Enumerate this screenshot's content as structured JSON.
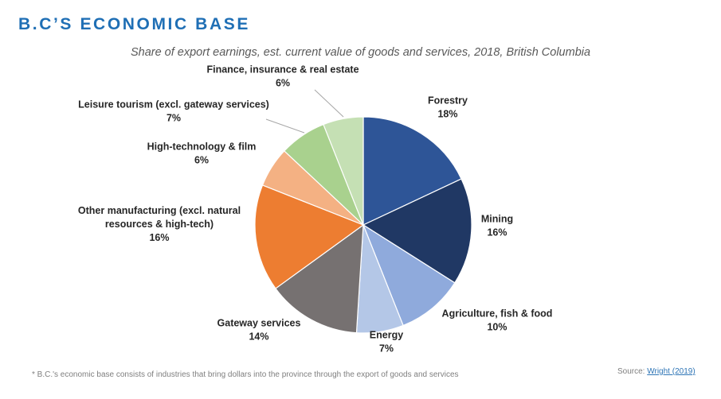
{
  "header": {
    "title": "B.C’S ECONOMIC BASE"
  },
  "footer": {
    "footnote": "* B.C.'s economic base consists of industries that bring dollars into the province through the export of goods and services",
    "source_label": "Source: ",
    "source_link": "Wright (2019)"
  },
  "chart_data": {
    "type": "pie",
    "title": "Share of export earnings, est. current value of goods and services, 2018, British Columbia",
    "legend": "none",
    "slices": [
      {
        "label": [
          "Forestry"
        ],
        "value": 18,
        "value_label": "18%",
        "color": "#2e5597"
      },
      {
        "label": [
          "Mining"
        ],
        "value": 16,
        "value_label": "16%",
        "color": "#203864"
      },
      {
        "label": [
          "Agriculture, fish & food"
        ],
        "value": 10,
        "value_label": "10%",
        "color": "#8faadc"
      },
      {
        "label": [
          "Energy"
        ],
        "value": 7,
        "value_label": "7%",
        "color": "#b4c7e7"
      },
      {
        "label": [
          "Gateway services"
        ],
        "value": 14,
        "value_label": "14%",
        "color": "#767171"
      },
      {
        "label": [
          "Other manufacturing (excl. natural",
          "resources & high-tech)"
        ],
        "value": 16,
        "value_label": "16%",
        "color": "#ed7d31"
      },
      {
        "label": [
          "High-technology & film"
        ],
        "value": 6,
        "value_label": "6%",
        "color": "#f4b183"
      },
      {
        "label": [
          "Leisure tourism (excl. gateway services)"
        ],
        "value": 7,
        "value_label": "7%",
        "color": "#a9d18e"
      },
      {
        "label": [
          "Finance, insurance & real estate"
        ],
        "value": 6,
        "value_label": "6%",
        "color": "#c5e0b4"
      }
    ]
  }
}
